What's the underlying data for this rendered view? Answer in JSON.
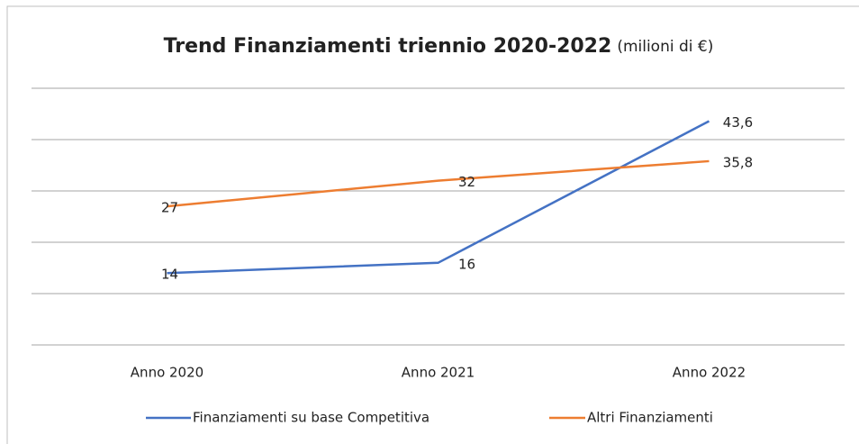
{
  "chart_data": {
    "type": "line",
    "title": "Trend Finanziamenti triennio 2020-2022",
    "subtitle": "(milioni di €)",
    "categories": [
      "Anno 2020",
      "Anno 2021",
      "Anno 2022"
    ],
    "series": [
      {
        "name": "Finanziamenti su base Competitiva",
        "color": "#4472c4",
        "values": [
          14,
          16,
          43.6
        ],
        "value_labels": [
          "14",
          "16",
          "43,6"
        ]
      },
      {
        "name": "Altri Finanziamenti",
        "color": "#ed7d31",
        "values": [
          27,
          32,
          35.8
        ],
        "value_labels": [
          "27",
          "32",
          "35,8"
        ]
      }
    ],
    "ylim": [
      0,
      50
    ],
    "yticks": [
      0,
      10,
      20,
      30,
      40,
      50
    ],
    "grid": true,
    "legend": "bottom"
  }
}
